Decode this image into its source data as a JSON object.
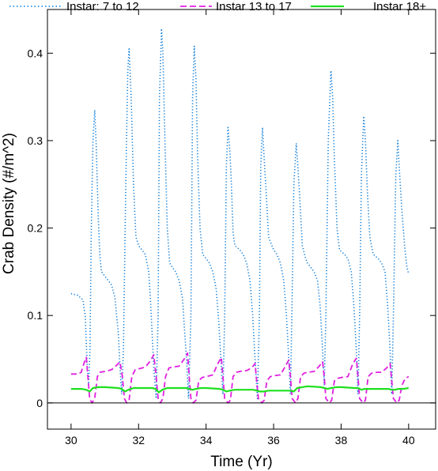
{
  "chart_data": {
    "type": "line",
    "title": "",
    "xlabel": "Time (Yr)",
    "ylabel": "Crab Density (#/m^2)",
    "xlim": [
      29.3,
      40.8
    ],
    "ylim": [
      -0.03,
      0.45
    ],
    "x_ticks": [
      30,
      32,
      34,
      36,
      38,
      40
    ],
    "x_tick_labels": [
      "30",
      "32",
      "34",
      "36",
      "38",
      "40"
    ],
    "y_ticks": [
      0,
      0.1,
      0.2,
      0.3,
      0.4
    ],
    "y_tick_labels": [
      "0",
      "0.1",
      "0.2",
      "0.3",
      "0.4"
    ],
    "zero_line": true,
    "grid": false,
    "legend_position": "top",
    "series": [
      {
        "name": "Instar: 7 to 12",
        "color": "#0a7ad6",
        "style": "dotted",
        "points": [
          [
            30.0,
            0.125
          ],
          [
            30.2,
            0.123
          ],
          [
            30.35,
            0.118
          ],
          [
            30.42,
            0.1
          ],
          [
            30.45,
            0.07
          ],
          [
            30.48,
            0.04
          ],
          [
            30.52,
            0.02
          ],
          [
            30.56,
            0.06
          ],
          [
            30.6,
            0.2
          ],
          [
            30.65,
            0.3
          ],
          [
            30.7,
            0.335
          ],
          [
            30.75,
            0.29
          ],
          [
            30.8,
            0.22
          ],
          [
            30.85,
            0.17
          ],
          [
            30.9,
            0.15
          ],
          [
            31.0,
            0.145
          ],
          [
            31.1,
            0.14
          ],
          [
            31.2,
            0.135
          ],
          [
            31.3,
            0.12
          ],
          [
            31.35,
            0.1
          ],
          [
            31.4,
            0.08
          ],
          [
            31.45,
            0.04
          ],
          [
            31.5,
            0.01
          ],
          [
            31.55,
            0.06
          ],
          [
            31.62,
            0.25
          ],
          [
            31.68,
            0.38
          ],
          [
            31.72,
            0.405
          ],
          [
            31.78,
            0.35
          ],
          [
            31.85,
            0.25
          ],
          [
            31.92,
            0.19
          ],
          [
            32.0,
            0.18
          ],
          [
            32.1,
            0.175
          ],
          [
            32.2,
            0.17
          ],
          [
            32.3,
            0.15
          ],
          [
            32.35,
            0.12
          ],
          [
            32.4,
            0.08
          ],
          [
            32.45,
            0.04
          ],
          [
            32.52,
            0.005
          ],
          [
            32.58,
            0.1
          ],
          [
            32.62,
            0.35
          ],
          [
            32.68,
            0.428
          ],
          [
            32.72,
            0.4
          ],
          [
            32.78,
            0.3
          ],
          [
            32.85,
            0.2
          ],
          [
            32.92,
            0.16
          ],
          [
            33.0,
            0.155
          ],
          [
            33.1,
            0.15
          ],
          [
            33.2,
            0.14
          ],
          [
            33.3,
            0.12
          ],
          [
            33.35,
            0.09
          ],
          [
            33.42,
            0.05
          ],
          [
            33.48,
            0.005
          ],
          [
            33.55,
            0.1
          ],
          [
            33.6,
            0.35
          ],
          [
            33.65,
            0.408
          ],
          [
            33.7,
            0.37
          ],
          [
            33.75,
            0.28
          ],
          [
            33.82,
            0.2
          ],
          [
            33.9,
            0.17
          ],
          [
            34.0,
            0.165
          ],
          [
            34.1,
            0.16
          ],
          [
            34.2,
            0.15
          ],
          [
            34.3,
            0.13
          ],
          [
            34.38,
            0.09
          ],
          [
            34.45,
            0.04
          ],
          [
            34.5,
            0.01
          ],
          [
            34.55,
            0.1
          ],
          [
            34.6,
            0.27
          ],
          [
            34.65,
            0.315
          ],
          [
            34.7,
            0.29
          ],
          [
            34.75,
            0.25
          ],
          [
            34.8,
            0.195
          ],
          [
            34.85,
            0.18
          ],
          [
            35.0,
            0.175
          ],
          [
            35.1,
            0.17
          ],
          [
            35.2,
            0.16
          ],
          [
            35.3,
            0.14
          ],
          [
            35.38,
            0.1
          ],
          [
            35.45,
            0.05
          ],
          [
            35.52,
            0.005
          ],
          [
            35.58,
            0.1
          ],
          [
            35.62,
            0.27
          ],
          [
            35.67,
            0.315
          ],
          [
            35.72,
            0.28
          ],
          [
            35.78,
            0.24
          ],
          [
            35.85,
            0.19
          ],
          [
            35.95,
            0.18
          ],
          [
            36.0,
            0.175
          ],
          [
            36.1,
            0.17
          ],
          [
            36.2,
            0.16
          ],
          [
            36.3,
            0.14
          ],
          [
            36.38,
            0.1
          ],
          [
            36.45,
            0.05
          ],
          [
            36.5,
            0.01
          ],
          [
            36.55,
            0.12
          ],
          [
            36.6,
            0.25
          ],
          [
            36.67,
            0.297
          ],
          [
            36.72,
            0.27
          ],
          [
            36.78,
            0.23
          ],
          [
            36.85,
            0.18
          ],
          [
            36.95,
            0.165
          ],
          [
            37.0,
            0.16
          ],
          [
            37.1,
            0.155
          ],
          [
            37.2,
            0.15
          ],
          [
            37.3,
            0.14
          ],
          [
            37.38,
            0.11
          ],
          [
            37.45,
            0.06
          ],
          [
            37.5,
            0.02
          ],
          [
            37.55,
            0.1
          ],
          [
            37.62,
            0.3
          ],
          [
            37.7,
            0.38
          ],
          [
            37.75,
            0.35
          ],
          [
            37.8,
            0.28
          ],
          [
            37.88,
            0.2
          ],
          [
            37.95,
            0.175
          ],
          [
            38.1,
            0.17
          ],
          [
            38.2,
            0.165
          ],
          [
            38.3,
            0.15
          ],
          [
            38.38,
            0.11
          ],
          [
            38.45,
            0.06
          ],
          [
            38.5,
            0.01
          ],
          [
            38.55,
            0.1
          ],
          [
            38.6,
            0.26
          ],
          [
            38.67,
            0.328
          ],
          [
            38.72,
            0.3
          ],
          [
            38.78,
            0.24
          ],
          [
            38.85,
            0.19
          ],
          [
            38.95,
            0.17
          ],
          [
            39.1,
            0.165
          ],
          [
            39.2,
            0.16
          ],
          [
            39.3,
            0.15
          ],
          [
            39.38,
            0.11
          ],
          [
            39.45,
            0.06
          ],
          [
            39.5,
            0.01
          ],
          [
            39.55,
            0.1
          ],
          [
            39.62,
            0.26
          ],
          [
            39.68,
            0.3
          ],
          [
            39.72,
            0.27
          ],
          [
            39.8,
            0.22
          ],
          [
            39.88,
            0.18
          ],
          [
            39.95,
            0.155
          ],
          [
            40.0,
            0.148
          ]
        ]
      },
      {
        "name": "Instar 13 to 17",
        "color": "#e020e0",
        "style": "dashed",
        "points": [
          [
            30.0,
            0.033
          ],
          [
            30.2,
            0.033
          ],
          [
            30.3,
            0.035
          ],
          [
            30.38,
            0.045
          ],
          [
            30.45,
            0.052
          ],
          [
            30.5,
            0.03
          ],
          [
            30.55,
            0.005
          ],
          [
            30.62,
            0.0
          ],
          [
            30.7,
            0.005
          ],
          [
            30.78,
            0.03
          ],
          [
            30.85,
            0.035
          ],
          [
            31.0,
            0.036
          ],
          [
            31.2,
            0.038
          ],
          [
            31.35,
            0.043
          ],
          [
            31.45,
            0.047
          ],
          [
            31.52,
            0.03
          ],
          [
            31.58,
            0.005
          ],
          [
            31.65,
            0.0
          ],
          [
            31.72,
            0.003
          ],
          [
            31.8,
            0.03
          ],
          [
            31.9,
            0.038
          ],
          [
            32.0,
            0.039
          ],
          [
            32.2,
            0.041
          ],
          [
            32.35,
            0.048
          ],
          [
            32.45,
            0.055
          ],
          [
            32.52,
            0.03
          ],
          [
            32.58,
            0.005
          ],
          [
            32.65,
            0.0
          ],
          [
            32.72,
            0.005
          ],
          [
            32.8,
            0.03
          ],
          [
            32.9,
            0.04
          ],
          [
            33.0,
            0.041
          ],
          [
            33.2,
            0.042
          ],
          [
            33.35,
            0.05
          ],
          [
            33.45,
            0.057
          ],
          [
            33.5,
            0.03
          ],
          [
            33.55,
            0.005
          ],
          [
            33.62,
            0.0
          ],
          [
            33.7,
            0.003
          ],
          [
            33.78,
            0.025
          ],
          [
            33.88,
            0.029
          ],
          [
            34.0,
            0.03
          ],
          [
            34.2,
            0.032
          ],
          [
            34.35,
            0.045
          ],
          [
            34.45,
            0.052
          ],
          [
            34.5,
            0.03
          ],
          [
            34.55,
            0.005
          ],
          [
            34.65,
            0.0
          ],
          [
            34.72,
            0.003
          ],
          [
            34.8,
            0.03
          ],
          [
            34.9,
            0.035
          ],
          [
            35.0,
            0.036
          ],
          [
            35.2,
            0.037
          ],
          [
            35.35,
            0.04
          ],
          [
            35.45,
            0.045
          ],
          [
            35.5,
            0.025
          ],
          [
            35.55,
            0.005
          ],
          [
            35.65,
            0.0
          ],
          [
            35.72,
            0.003
          ],
          [
            35.8,
            0.025
          ],
          [
            35.9,
            0.03
          ],
          [
            36.0,
            0.031
          ],
          [
            36.2,
            0.032
          ],
          [
            36.35,
            0.042
          ],
          [
            36.45,
            0.049
          ],
          [
            36.5,
            0.03
          ],
          [
            36.55,
            0.005
          ],
          [
            36.65,
            0.0
          ],
          [
            36.72,
            0.005
          ],
          [
            36.8,
            0.03
          ],
          [
            36.9,
            0.034
          ],
          [
            37.0,
            0.035
          ],
          [
            37.2,
            0.036
          ],
          [
            37.35,
            0.042
          ],
          [
            37.45,
            0.047
          ],
          [
            37.5,
            0.03
          ],
          [
            37.55,
            0.005
          ],
          [
            37.65,
            0.0
          ],
          [
            37.72,
            0.003
          ],
          [
            37.8,
            0.025
          ],
          [
            37.9,
            0.028
          ],
          [
            38.0,
            0.029
          ],
          [
            38.2,
            0.03
          ],
          [
            38.35,
            0.045
          ],
          [
            38.45,
            0.051
          ],
          [
            38.5,
            0.03
          ],
          [
            38.55,
            0.005
          ],
          [
            38.65,
            0.0
          ],
          [
            38.72,
            0.003
          ],
          [
            38.8,
            0.03
          ],
          [
            38.9,
            0.034
          ],
          [
            39.0,
            0.035
          ],
          [
            39.2,
            0.035
          ],
          [
            39.35,
            0.04
          ],
          [
            39.45,
            0.045
          ],
          [
            39.5,
            0.025
          ],
          [
            39.55,
            0.005
          ],
          [
            39.65,
            0.0
          ],
          [
            39.72,
            0.003
          ],
          [
            39.8,
            0.02
          ],
          [
            39.9,
            0.028
          ],
          [
            40.0,
            0.03
          ]
        ]
      },
      {
        "name": "Instar 18+",
        "color": "#1ee01e",
        "style": "solid",
        "points": [
          [
            30.0,
            0.016
          ],
          [
            30.3,
            0.016
          ],
          [
            30.45,
            0.015
          ],
          [
            30.55,
            0.013
          ],
          [
            30.65,
            0.017
          ],
          [
            30.8,
            0.018
          ],
          [
            31.0,
            0.018
          ],
          [
            31.4,
            0.017
          ],
          [
            31.5,
            0.016
          ],
          [
            31.6,
            0.013
          ],
          [
            31.7,
            0.015
          ],
          [
            31.85,
            0.017
          ],
          [
            32.0,
            0.017
          ],
          [
            32.4,
            0.017
          ],
          [
            32.5,
            0.016
          ],
          [
            32.6,
            0.012
          ],
          [
            32.7,
            0.015
          ],
          [
            32.85,
            0.017
          ],
          [
            33.0,
            0.017
          ],
          [
            33.4,
            0.017
          ],
          [
            33.5,
            0.016
          ],
          [
            33.6,
            0.015
          ],
          [
            33.7,
            0.016
          ],
          [
            33.85,
            0.017
          ],
          [
            34.0,
            0.017
          ],
          [
            34.4,
            0.016
          ],
          [
            34.5,
            0.015
          ],
          [
            34.6,
            0.013
          ],
          [
            34.7,
            0.014
          ],
          [
            34.85,
            0.015
          ],
          [
            35.0,
            0.015
          ],
          [
            35.4,
            0.015
          ],
          [
            35.5,
            0.014
          ],
          [
            35.6,
            0.013
          ],
          [
            35.7,
            0.013
          ],
          [
            35.85,
            0.014
          ],
          [
            36.0,
            0.014
          ],
          [
            36.4,
            0.014
          ],
          [
            36.5,
            0.014
          ],
          [
            36.6,
            0.013
          ],
          [
            36.7,
            0.017
          ],
          [
            36.85,
            0.018
          ],
          [
            37.0,
            0.019
          ],
          [
            37.4,
            0.018
          ],
          [
            37.5,
            0.017
          ],
          [
            37.6,
            0.016
          ],
          [
            37.7,
            0.017
          ],
          [
            37.85,
            0.018
          ],
          [
            38.0,
            0.018
          ],
          [
            38.4,
            0.017
          ],
          [
            38.5,
            0.017
          ],
          [
            38.6,
            0.015
          ],
          [
            38.7,
            0.016
          ],
          [
            38.85,
            0.016
          ],
          [
            39.0,
            0.016
          ],
          [
            39.4,
            0.016
          ],
          [
            39.5,
            0.015
          ],
          [
            39.6,
            0.015
          ],
          [
            39.7,
            0.016
          ],
          [
            39.85,
            0.016
          ],
          [
            40.0,
            0.017
          ]
        ]
      }
    ]
  }
}
